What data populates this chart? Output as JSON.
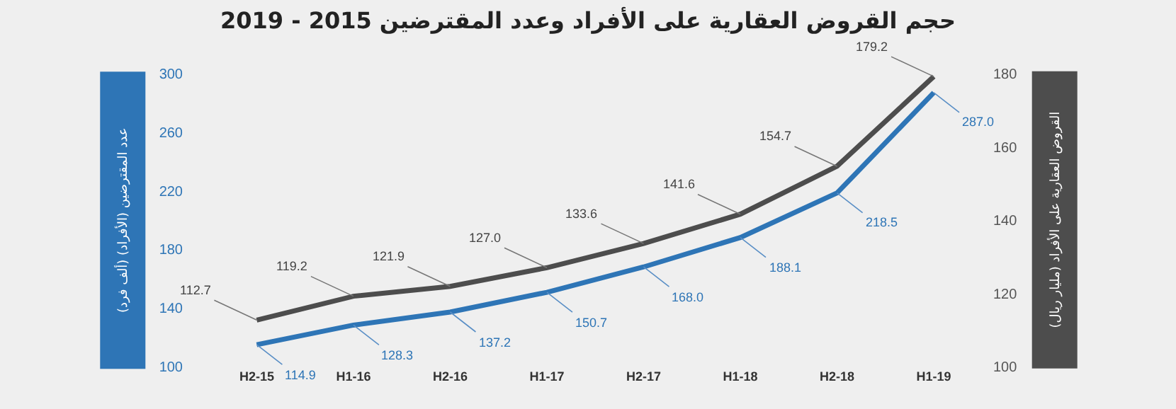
{
  "chart_data": {
    "type": "line",
    "title": "حجم القروض العقارية على الأفراد وعدد المقترضين 2015 - 2019",
    "ylabel": "عدد المقترضين (الأفراد) (ألف فرد)",
    "y2label": "القروض العقارية على الأفراد (مليار ريال)",
    "categories": [
      "H2-15",
      "H1-16",
      "H2-16",
      "H1-17",
      "H2-17",
      "H1-18",
      "H2-18",
      "H1-19"
    ],
    "series": [
      {
        "color": "#2e75b6",
        "values": [
          114.9,
          128.3,
          137.2,
          150.7,
          168.0,
          188.1,
          218.5,
          287.0
        ],
        "value_labels": [
          "114.9",
          "128.3",
          "137.2",
          "150.7",
          "168.0",
          "188.1",
          "218.5",
          "287.0"
        ]
      },
      {
        "color": "#4d4d4d",
        "axis": "y2",
        "values": [
          112.7,
          119.2,
          121.9,
          127.0,
          133.6,
          141.6,
          154.7,
          179.2
        ],
        "value_labels": [
          "112.7",
          "119.2",
          "121.9",
          "127.0",
          "133.6",
          "141.6",
          "154.7",
          "179.2"
        ]
      }
    ],
    "ylim": [
      100,
      300
    ],
    "yticks": [
      100,
      140,
      180,
      220,
      260,
      300
    ],
    "y2lim": [
      100,
      180
    ],
    "y2ticks": [
      100,
      120,
      140,
      160,
      180
    ],
    "grid": false,
    "marker": "none",
    "line_style": "solid"
  }
}
